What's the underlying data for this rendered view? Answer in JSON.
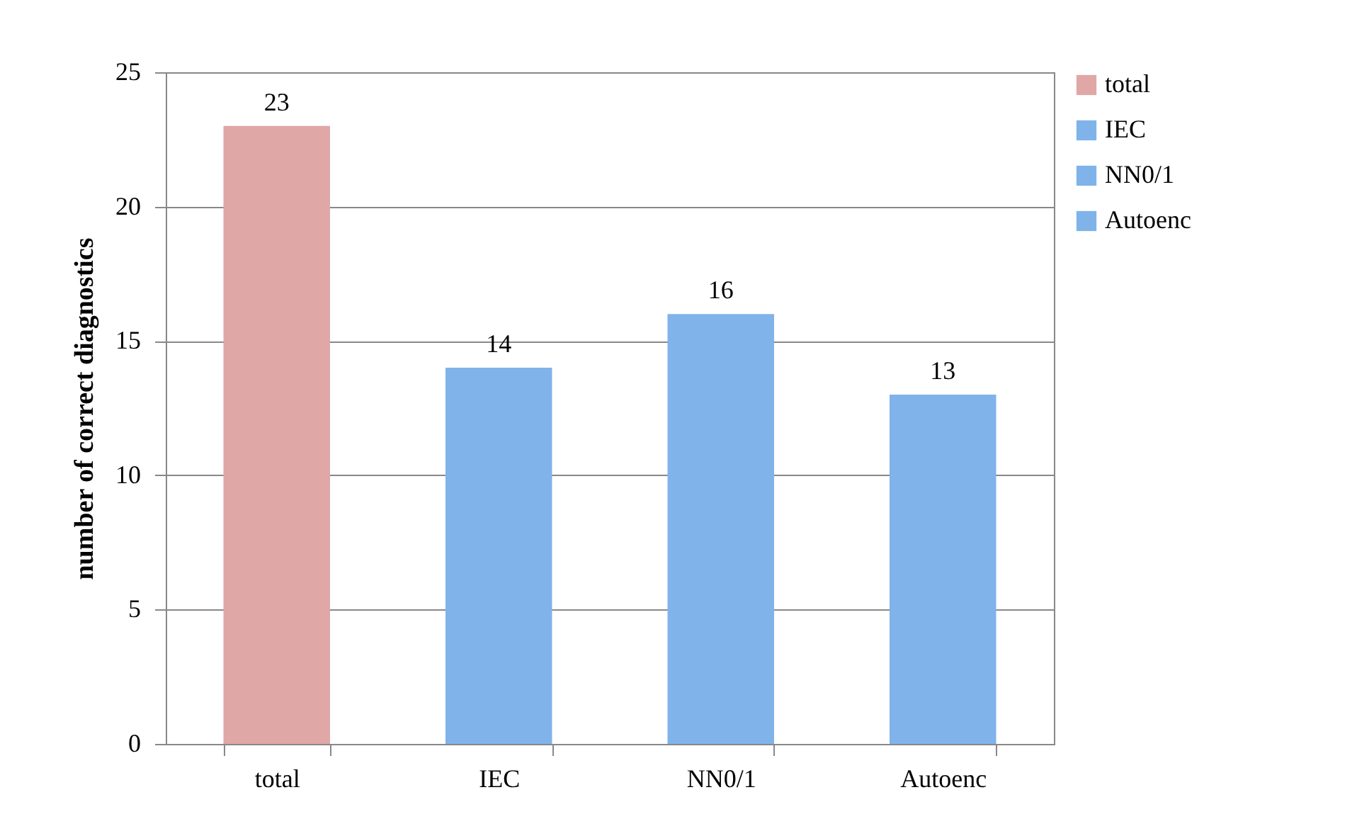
{
  "chart_data": {
    "type": "bar",
    "ylabel": "number of correct diagnostics",
    "categories": [
      "total",
      "IEC",
      "NN0/1",
      "Autoenc"
    ],
    "series": [
      {
        "name": "total",
        "color": "#dfa7a6",
        "values": [
          23,
          null,
          null,
          null
        ]
      },
      {
        "name": "IEC",
        "color": "#7fb3ea",
        "values": [
          null,
          14,
          null,
          null
        ]
      },
      {
        "name": "NN0/1",
        "color": "#7fb3ea",
        "values": [
          null,
          null,
          16,
          null
        ]
      },
      {
        "name": "Autoenc",
        "color": "#7fb3ea",
        "values": [
          null,
          null,
          null,
          13
        ]
      }
    ],
    "ylim": [
      0,
      25
    ],
    "yticks": [
      0,
      5,
      10,
      15,
      20,
      25
    ],
    "grid": "y",
    "legend": "right",
    "data_labels": true
  }
}
